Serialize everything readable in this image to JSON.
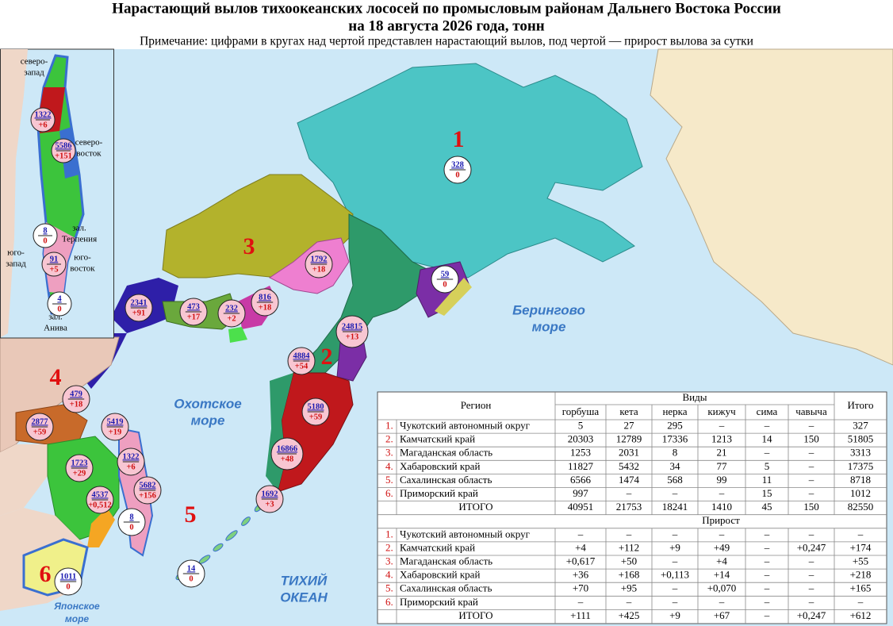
{
  "header": {
    "title_line1": "Нарастающий вылов тихоокеанских лососей по промысловым районам Дальнего Востока России",
    "title_line2": "на 18 августа 2026 года, тонн",
    "note": "Примечание: цифрами в кругах над чертой представлен нарастающий вылов, под чертой — прирост вылова за сутки"
  },
  "map": {
    "region_numbers": [
      "1",
      "2",
      "3",
      "4",
      "5",
      "6"
    ],
    "sea_labels": [
      [
        "Берингово",
        "море"
      ],
      [
        "Охотское",
        "море"
      ],
      [
        "ТИХИЙ",
        "ОКЕАН"
      ],
      [
        "Японское",
        "море"
      ]
    ],
    "inset_labels": [
      [
        "северо-",
        "запад"
      ],
      [
        "северо-",
        "восток"
      ],
      [
        "зал.",
        "Терпения"
      ],
      [
        "юго-",
        "запад"
      ],
      [
        "юго-",
        "восток"
      ],
      [
        "зал.",
        "Анива"
      ]
    ],
    "catch_circles": [
      {
        "total": "328",
        "increment": "0"
      },
      {
        "total": "1792",
        "increment": "+18"
      },
      {
        "total": "59",
        "increment": "0"
      },
      {
        "total": "2341",
        "increment": "+91"
      },
      {
        "total": "473",
        "increment": "+17"
      },
      {
        "total": "232",
        "increment": "+2"
      },
      {
        "total": "816",
        "increment": "+18"
      },
      {
        "total": "24815",
        "increment": "+13"
      },
      {
        "total": "4884",
        "increment": "+54"
      },
      {
        "total": "5180",
        "increment": "+59"
      },
      {
        "total": "16866",
        "increment": "+48"
      },
      {
        "total": "1692",
        "increment": "+3"
      },
      {
        "total": "479",
        "increment": "+18"
      },
      {
        "total": "2877",
        "increment": "+59"
      },
      {
        "total": "5419",
        "increment": "+19"
      },
      {
        "total": "1322",
        "increment": "+6"
      },
      {
        "total": "1723",
        "increment": "+29"
      },
      {
        "total": "4537",
        "increment": "+0,512"
      },
      {
        "total": "5682",
        "increment": "+156"
      },
      {
        "total": "8",
        "increment": "0"
      },
      {
        "total": "1011",
        "increment": "0"
      },
      {
        "total": "14",
        "increment": "0"
      }
    ],
    "inset_circles": [
      {
        "total": "1322",
        "increment": "+6"
      },
      {
        "total": "5586",
        "increment": "+151"
      },
      {
        "total": "8",
        "increment": "0"
      },
      {
        "total": "91",
        "increment": "+5"
      },
      {
        "total": "4",
        "increment": "0"
      }
    ]
  },
  "table": {
    "region_header": "Регион",
    "species_header": "Виды",
    "total_header": "Итого",
    "species": [
      "горбуша",
      "кета",
      "нерка",
      "кижуч",
      "сима",
      "чавыча"
    ],
    "catch_rows": [
      {
        "num": "1.",
        "name": "Чукотский автономный округ",
        "values": [
          "5",
          "27",
          "295",
          "–",
          "–",
          "–",
          "327"
        ]
      },
      {
        "num": "2.",
        "name": "Камчатский край",
        "values": [
          "20303",
          "12789",
          "17336",
          "1213",
          "14",
          "150",
          "51805"
        ]
      },
      {
        "num": "3.",
        "name": "Магаданская область",
        "values": [
          "1253",
          "2031",
          "8",
          "21",
          "–",
          "–",
          "3313"
        ]
      },
      {
        "num": "4.",
        "name": "Хабаровский край",
        "values": [
          "11827",
          "5432",
          "34",
          "77",
          "5",
          "–",
          "17375"
        ]
      },
      {
        "num": "5.",
        "name": "Сахалинская область",
        "values": [
          "6566",
          "1474",
          "568",
          "99",
          "11",
          "–",
          "8718"
        ]
      },
      {
        "num": "6.",
        "name": "Приморский край",
        "values": [
          "997",
          "–",
          "–",
          "–",
          "15",
          "–",
          "1012"
        ]
      }
    ],
    "catch_total": {
      "name": "ИТОГО",
      "values": [
        "40951",
        "21753",
        "18241",
        "1410",
        "45",
        "150",
        "82550"
      ]
    },
    "increment_header": "Прирост",
    "increment_rows": [
      {
        "num": "1.",
        "name": "Чукотский автономный округ",
        "values": [
          "–",
          "–",
          "–",
          "–",
          "–",
          "–",
          "–"
        ]
      },
      {
        "num": "2.",
        "name": "Камчатский край",
        "values": [
          "+4",
          "+112",
          "+9",
          "+49",
          "–",
          "+0,247",
          "+174"
        ]
      },
      {
        "num": "3.",
        "name": "Магаданская область",
        "values": [
          "+0,617",
          "+50",
          "–",
          "+4",
          "–",
          "–",
          "+55"
        ]
      },
      {
        "num": "4.",
        "name": "Хабаровский край",
        "values": [
          "+36",
          "+168",
          "+0,113",
          "+14",
          "–",
          "–",
          "+218"
        ]
      },
      {
        "num": "5.",
        "name": "Сахалинская область",
        "values": [
          "+70",
          "+95",
          "–",
          "+0,070",
          "–",
          "–",
          "+165"
        ]
      },
      {
        "num": "6.",
        "name": "Приморский край",
        "values": [
          "–",
          "–",
          "–",
          "–",
          "–",
          "–",
          "–"
        ]
      }
    ],
    "increment_total": {
      "name": "ИТОГО",
      "values": [
        "+111",
        "+425",
        "+9",
        "+67",
        "–",
        "+0,247",
        "+612"
      ]
    }
  }
}
